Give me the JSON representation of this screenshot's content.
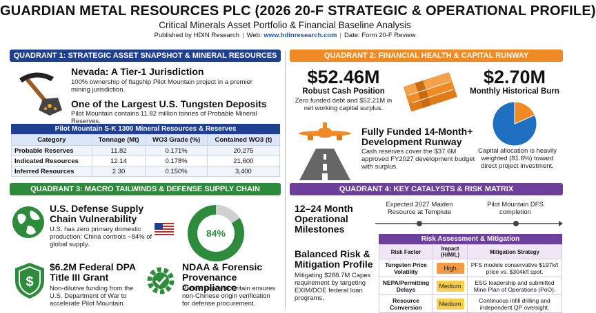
{
  "header": {
    "title": "GUARDIAN METAL RESOURCES PLC (2026 20-F STRATEGIC & OPERATIONAL PROFILE)",
    "subtitle": "Critical Minerals Asset Portfolio & Financial Baseline Analysis",
    "published_by": "Published by HDIN Research",
    "web_label": "Web: ",
    "web_link": "www.hdinresearch.com",
    "date": "Date: Form 20-F Review"
  },
  "q1": {
    "title": "QUADRANT 1: STRATEGIC ASSET SNAPSHOT & MINERAL RESOURCES",
    "block1_title": "Nevada: A Tier-1 Jurisdiction",
    "block1_text": "100% ownership of flagship Pilot Mountain project in a premier mining jurisdiction.",
    "block2_title": "One of the Largest U.S. Tungsten Deposits",
    "block2_text": "Pilot Mountain contains 11.82 million tonnes of Probable Mineral Reserves.",
    "table": {
      "caption": "Pilot Mountain S-K 1300 Mineral Resources & Reserves",
      "headers": [
        "Category",
        "Tonnage (Mt)",
        "WO3 Grade (%)",
        "Contained WO3 (t)"
      ],
      "rows": [
        [
          "Probable Reserves",
          "11.82",
          "0.171%",
          "20,275"
        ],
        [
          "Indicated Resources",
          "12.14",
          "0.178%",
          "21,600"
        ],
        [
          "Inferred Resources",
          "2.30",
          "0.150%",
          "3,400"
        ]
      ]
    }
  },
  "q2": {
    "title": "QUADRANT 2: FINANCIAL HEALTH & CAPITAL RUNWAY",
    "cash_value": "$52.46M",
    "cash_label": "Robust Cash Position",
    "cash_text": "Zero funded debt and $52.21M in net working capital surplus.",
    "burn_value": "$2.70M",
    "burn_label": "Monthly Historical Burn",
    "runway_title": "Fully Funded 14-Month+ Development Runway",
    "runway_text": "Cash reserves cover the $37.6M approved FY2027 development budget with surplus.",
    "allocation_text": "Capital allocation is heavily weighted (81.6%) toward direct project investment.",
    "allocation_pie": {
      "direct": 81.6,
      "other": 18.4,
      "color_direct": "#1f6fc0",
      "color_other": "#f08a24"
    }
  },
  "q3": {
    "title": "QUADRANT 3: MACRO TAILWINDS & DEFENSE SUPPLY CHAIN",
    "vuln_title": "U.S. Defense Supply Chain Vulnerability",
    "vuln_text": "U.S. has zero primary domestic production; China controls ~84% of global supply.",
    "china_share_label": "84%",
    "china_share_value": 84,
    "grant_title": "$6.2M Federal DPA Title III Grant",
    "grant_text": "Non-dilutive funding from the U.S. Department of War to accelerate Pilot Mountain.",
    "ndaa_title": "NDAA & Forensic Provenance Compliance",
    "ndaa_text": "Partnership with Oritain ensures non-Chinese origin verification for defense procurement."
  },
  "q4": {
    "title": "QUADRANT 4: KEY CATALYSTS & RISK MATRIX",
    "milestones_title": "12–24 Month Operational Milestones",
    "milestone1": "Expected 2027 Maiden Resource at Tempiute",
    "milestone2": "Pilot Mountain DFS completion",
    "balanced_title": "Balanced Risk & Mitigation Profile",
    "balanced_text": "Mitigating $288.7M Capex requirement by targeting EXIM/DOE federal loan programs.",
    "risk_table": {
      "caption": "Risk Assessment & Mitigation",
      "headers": [
        "Risk Factor",
        "Impact (H/M/L)",
        "Mitigation Strategy"
      ],
      "rows": [
        {
          "factor": "Tungsten Price Volatility",
          "impact": "High",
          "strategy": "PFS models conservative $197k/t price vs. $304k/t spot."
        },
        {
          "factor": "NEPA/Permitting Delays",
          "impact": "Medium",
          "strategy": "ESG leadership and submitted Mine Plan of Operations (PoO)."
        },
        {
          "factor": "Resource Conversion",
          "impact": "Medium",
          "strategy": "Continuous infill drilling and independent QP oversight."
        }
      ]
    }
  }
}
